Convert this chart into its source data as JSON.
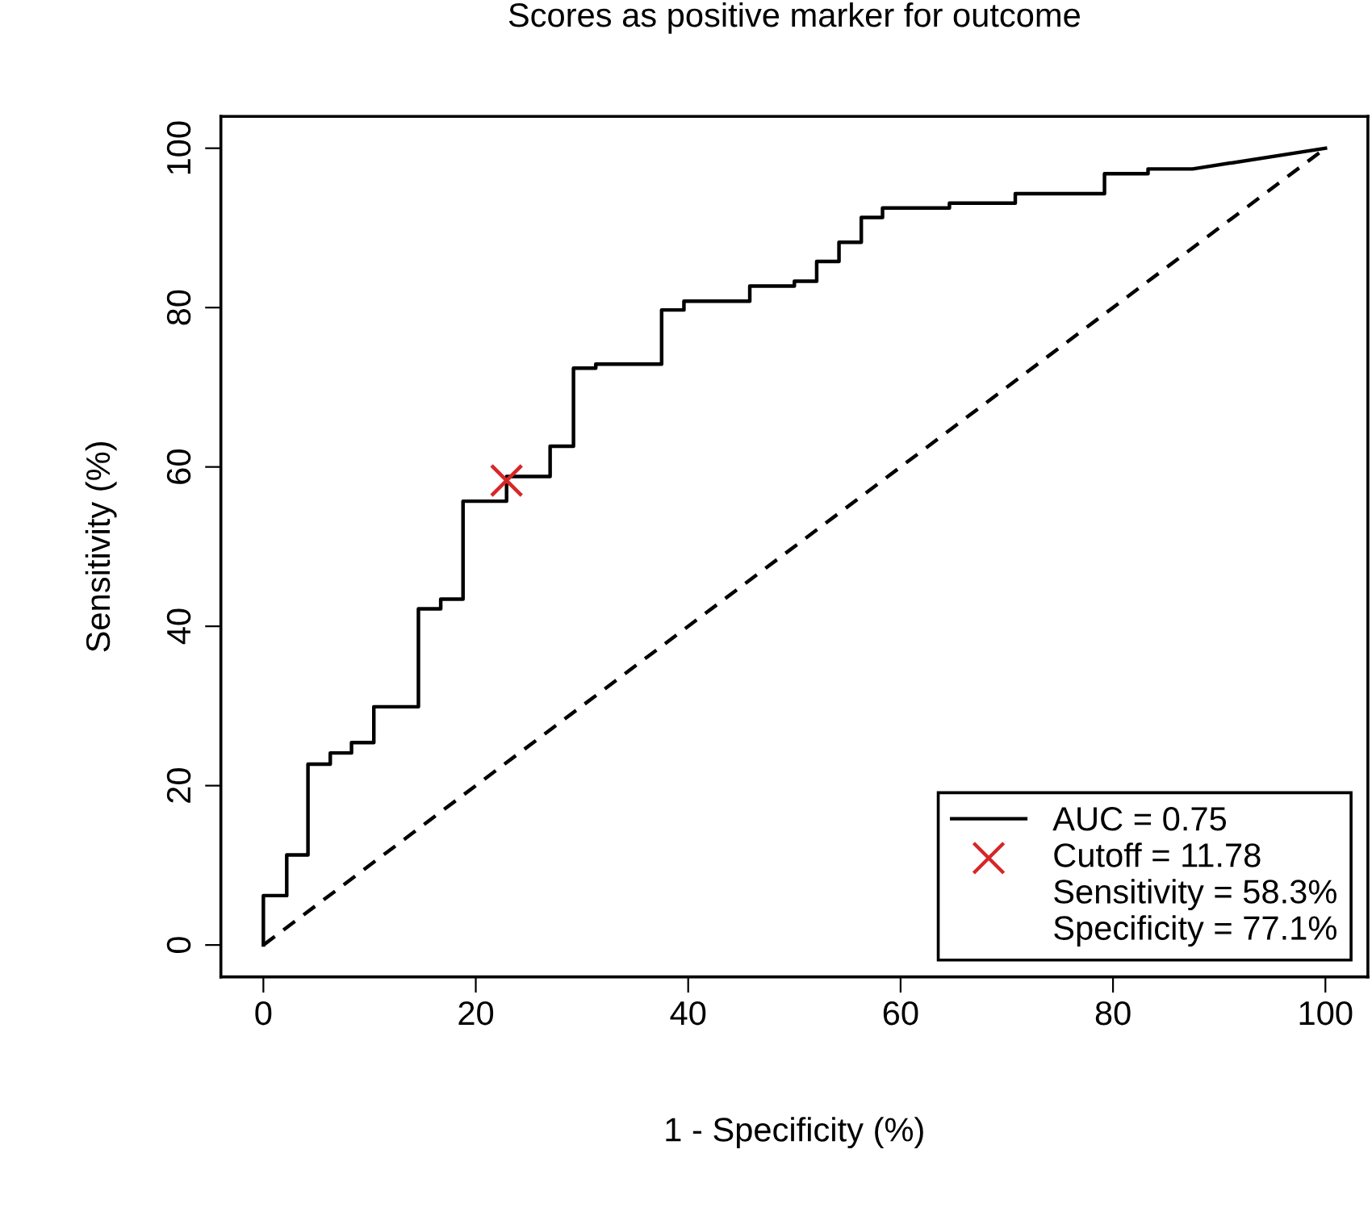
{
  "chart_data": {
    "type": "line",
    "title": "Scores as positive marker for outcome",
    "xlabel": "1 - Specificity (%)",
    "ylabel": "Sensitivity (%)",
    "xlim": [
      -4,
      104
    ],
    "ylim": [
      -4,
      104
    ],
    "xticks": [
      0,
      20,
      40,
      60,
      80,
      100
    ],
    "yticks": [
      0,
      20,
      40,
      60,
      80,
      100
    ],
    "grid": false,
    "legend": "bottom right",
    "series": [
      {
        "name": "AUC = 0.75",
        "color": "#000000",
        "line_style": "solid",
        "marker": "none",
        "x": [
          0,
          0,
          2.2,
          2.2,
          4.2,
          4.2,
          6.3,
          6.3,
          8.3,
          8.3,
          10.4,
          10.4,
          14.6,
          14.6,
          16.7,
          16.7,
          18.8,
          18.8,
          22.9,
          22.9,
          27,
          27,
          29.2,
          29.2,
          31.3,
          31.3,
          37.5,
          37.5,
          39.6,
          39.6,
          45.8,
          45.8,
          50,
          50,
          52.1,
          52.1,
          54.2,
          54.2,
          56.3,
          56.3,
          58.3,
          58.3,
          64.6,
          64.6,
          70.8,
          70.8,
          79.2,
          79.2,
          83.3,
          83.3,
          87.5,
          100
        ],
        "values": [
          0,
          6.2,
          6.2,
          11.3,
          11.3,
          22.7,
          22.7,
          24.1,
          24.1,
          25.4,
          25.4,
          29.9,
          29.9,
          42.2,
          42.2,
          43.4,
          43.4,
          55.7,
          55.7,
          58.8,
          58.8,
          62.6,
          62.6,
          72.4,
          72.4,
          72.9,
          72.9,
          79.7,
          79.7,
          80.8,
          80.8,
          82.7,
          82.7,
          83.3,
          83.3,
          85.8,
          85.8,
          88.2,
          88.2,
          91.3,
          91.3,
          92.5,
          92.5,
          93.1,
          93.1,
          94.3,
          94.3,
          96.8,
          96.8,
          97.4,
          97.4,
          100
        ]
      },
      {
        "color": "#000000",
        "line_style": "dashed",
        "marker": "none",
        "x": [
          0,
          100
        ],
        "values": [
          0,
          100
        ]
      },
      {
        "name": "Cutoff = 11.78",
        "type": "scatter",
        "color": "#d62728",
        "marker": "cross",
        "x": [
          22.9
        ],
        "values": [
          58.3
        ]
      }
    ],
    "annotations": [
      "Sensitivity = 58.3%",
      "Specificity = 77.1%"
    ]
  }
}
